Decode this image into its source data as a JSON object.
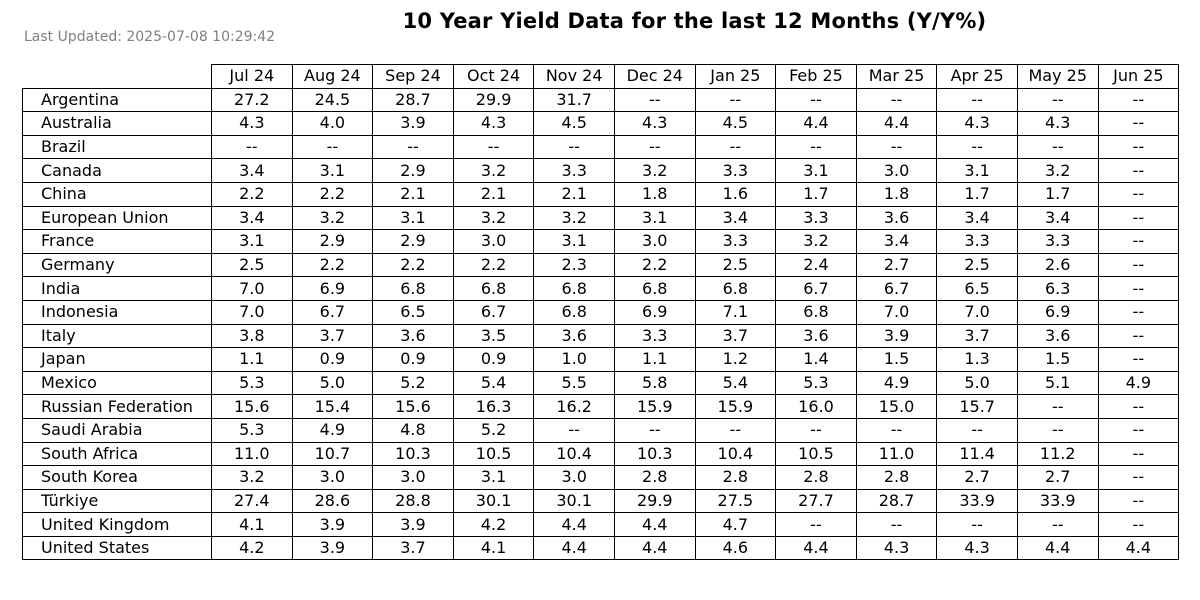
{
  "title": "10 Year Yield Data for the last 12 Months (Y/Y%)",
  "last_updated": "Last Updated: 2025-07-08 10:29:42",
  "chart_data": {
    "type": "table",
    "title": "10 Year Yield Data for the last 12 Months (Y/Y%)",
    "columns": [
      "Jul 24",
      "Aug 24",
      "Sep 24",
      "Oct 24",
      "Nov 24",
      "Dec 24",
      "Jan 25",
      "Feb 25",
      "Mar 25",
      "Apr 25",
      "May 25",
      "Jun 25"
    ],
    "rows": [
      {
        "country": "Argentina",
        "values": [
          "27.2",
          "24.5",
          "28.7",
          "29.9",
          "31.7",
          "--",
          "--",
          "--",
          "--",
          "--",
          "--",
          "--"
        ]
      },
      {
        "country": "Australia",
        "values": [
          "4.3",
          "4.0",
          "3.9",
          "4.3",
          "4.5",
          "4.3",
          "4.5",
          "4.4",
          "4.4",
          "4.3",
          "4.3",
          "--"
        ]
      },
      {
        "country": "Brazil",
        "values": [
          "--",
          "--",
          "--",
          "--",
          "--",
          "--",
          "--",
          "--",
          "--",
          "--",
          "--",
          "--"
        ]
      },
      {
        "country": "Canada",
        "values": [
          "3.4",
          "3.1",
          "2.9",
          "3.2",
          "3.3",
          "3.2",
          "3.3",
          "3.1",
          "3.0",
          "3.1",
          "3.2",
          "--"
        ]
      },
      {
        "country": "China",
        "values": [
          "2.2",
          "2.2",
          "2.1",
          "2.1",
          "2.1",
          "1.8",
          "1.6",
          "1.7",
          "1.8",
          "1.7",
          "1.7",
          "--"
        ]
      },
      {
        "country": "European Union",
        "values": [
          "3.4",
          "3.2",
          "3.1",
          "3.2",
          "3.2",
          "3.1",
          "3.4",
          "3.3",
          "3.6",
          "3.4",
          "3.4",
          "--"
        ]
      },
      {
        "country": "France",
        "values": [
          "3.1",
          "2.9",
          "2.9",
          "3.0",
          "3.1",
          "3.0",
          "3.3",
          "3.2",
          "3.4",
          "3.3",
          "3.3",
          "--"
        ]
      },
      {
        "country": "Germany",
        "values": [
          "2.5",
          "2.2",
          "2.2",
          "2.2",
          "2.3",
          "2.2",
          "2.5",
          "2.4",
          "2.7",
          "2.5",
          "2.6",
          "--"
        ]
      },
      {
        "country": "India",
        "values": [
          "7.0",
          "6.9",
          "6.8",
          "6.8",
          "6.8",
          "6.8",
          "6.8",
          "6.7",
          "6.7",
          "6.5",
          "6.3",
          "--"
        ]
      },
      {
        "country": "Indonesia",
        "values": [
          "7.0",
          "6.7",
          "6.5",
          "6.7",
          "6.8",
          "6.9",
          "7.1",
          "6.8",
          "7.0",
          "7.0",
          "6.9",
          "--"
        ]
      },
      {
        "country": "Italy",
        "values": [
          "3.8",
          "3.7",
          "3.6",
          "3.5",
          "3.6",
          "3.3",
          "3.7",
          "3.6",
          "3.9",
          "3.7",
          "3.6",
          "--"
        ]
      },
      {
        "country": "Japan",
        "values": [
          "1.1",
          "0.9",
          "0.9",
          "0.9",
          "1.0",
          "1.1",
          "1.2",
          "1.4",
          "1.5",
          "1.3",
          "1.5",
          "--"
        ]
      },
      {
        "country": "Mexico",
        "values": [
          "5.3",
          "5.0",
          "5.2",
          "5.4",
          "5.5",
          "5.8",
          "5.4",
          "5.3",
          "4.9",
          "5.0",
          "5.1",
          "4.9"
        ]
      },
      {
        "country": "Russian Federation",
        "values": [
          "15.6",
          "15.4",
          "15.6",
          "16.3",
          "16.2",
          "15.9",
          "15.9",
          "16.0",
          "15.0",
          "15.7",
          "--",
          "--"
        ]
      },
      {
        "country": "Saudi Arabia",
        "values": [
          "5.3",
          "4.9",
          "4.8",
          "5.2",
          "--",
          "--",
          "--",
          "--",
          "--",
          "--",
          "--",
          "--"
        ]
      },
      {
        "country": "South Africa",
        "values": [
          "11.0",
          "10.7",
          "10.3",
          "10.5",
          "10.4",
          "10.3",
          "10.4",
          "10.5",
          "11.0",
          "11.4",
          "11.2",
          "--"
        ]
      },
      {
        "country": "South Korea",
        "values": [
          "3.2",
          "3.0",
          "3.0",
          "3.1",
          "3.0",
          "2.8",
          "2.8",
          "2.8",
          "2.8",
          "2.7",
          "2.7",
          "--"
        ]
      },
      {
        "country": "Türkiye",
        "values": [
          "27.4",
          "28.6",
          "28.8",
          "30.1",
          "30.1",
          "29.9",
          "27.5",
          "27.7",
          "28.7",
          "33.9",
          "33.9",
          "--"
        ]
      },
      {
        "country": "United Kingdom",
        "values": [
          "4.1",
          "3.9",
          "3.9",
          "4.2",
          "4.4",
          "4.4",
          "4.7",
          "--",
          "--",
          "--",
          "--",
          "--"
        ]
      },
      {
        "country": "United States",
        "values": [
          "4.2",
          "3.9",
          "3.7",
          "4.1",
          "4.4",
          "4.4",
          "4.6",
          "4.4",
          "4.3",
          "4.3",
          "4.4",
          "4.4"
        ]
      }
    ]
  }
}
